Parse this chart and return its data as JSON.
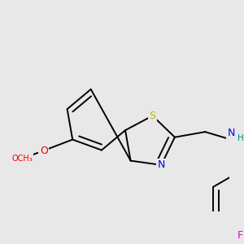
{
  "background_color": "#e8e8e8",
  "bond_color": "#000000",
  "atom_colors": {
    "S": "#b8b800",
    "N": "#0000ee",
    "O": "#ee0000",
    "F": "#dd00dd",
    "NH": "#008888",
    "C": "#000000"
  },
  "bond_width": 1.4,
  "font_size": 8.5
}
